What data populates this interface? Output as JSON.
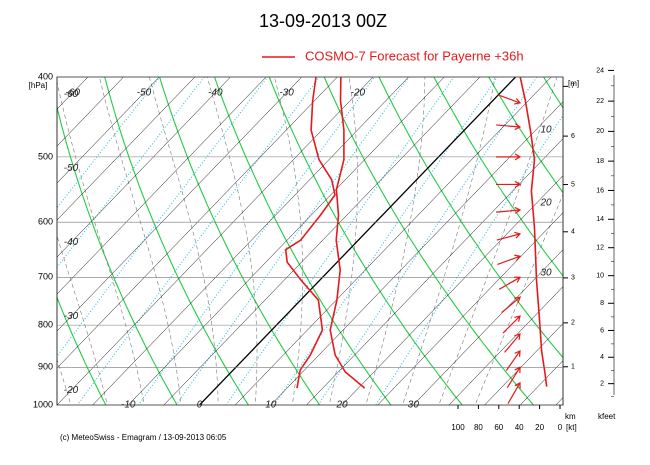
{
  "title": "13-09-2013  00Z",
  "legend": "COSMO-7 Forecast for Payerne   +36h",
  "footer": "(c) MeteoSwiss - Emagram  /  13-09-2013  06:05",
  "chart_data": {
    "type": "emagram",
    "ylabel": "[hPa]",
    "ylim": [
      1000,
      400
    ],
    "log_y": true,
    "yticks": [
      400,
      500,
      600,
      700,
      800,
      900,
      1000
    ],
    "xlim": [
      -20,
      51
    ],
    "isotherm_labels_top": [
      -60,
      -50,
      -40,
      -30,
      -20
    ],
    "isotherm_labels_left": [
      -60,
      -50,
      -40,
      -30,
      -20
    ],
    "isotherm_labels_bottom": [
      -10,
      0,
      10,
      20,
      30
    ],
    "profile_labels": [
      10,
      20,
      30
    ],
    "series": [
      {
        "color": "#e31a1c",
        "pressure": [
          954,
          912,
          870,
          811,
          746,
          686,
          631,
          588,
          548,
          504,
          464,
          427,
          400
        ],
        "values": [
          20.9,
          16.0,
          12.3,
          8.2,
          5.1,
          1.5,
          -3.1,
          -6.2,
          -9.9,
          -12.9,
          -16.9,
          -21.4,
          -24.5
        ]
      },
      {
        "color": "#e31a1c",
        "pressure": [
          954,
          907,
          870,
          811,
          746,
          705,
          671,
          648,
          631,
          588,
          556,
          533,
          504,
          464,
          427,
          400
        ],
        "values": [
          11.4,
          9.4,
          8.8,
          7.1,
          2.5,
          -2.7,
          -7.0,
          -8.9,
          -8.1,
          -8.7,
          -9.4,
          -11.9,
          -16.4,
          -21.5,
          -25.3,
          -28.0
        ]
      },
      {
        "color": "#e31a1c",
        "axis": "wind",
        "pressure": [
          950,
          910,
          860,
          790,
          705,
          610,
          550,
          504,
          464,
          427,
          400
        ],
        "values": [
          13,
          15,
          18,
          20,
          23,
          25,
          28,
          25,
          29,
          34,
          39
        ]
      }
    ],
    "wind_barbs": {
      "color": "#e31a1c",
      "pressure": [
        430,
        460,
        500,
        540,
        580,
        620,
        660,
        700,
        740,
        780,
        820,
        860,
        900,
        940
      ],
      "direction": [
        290,
        275,
        270,
        270,
        265,
        255,
        250,
        240,
        230,
        225,
        220,
        215,
        212,
        210
      ]
    },
    "wind_xlim": [
      100,
      0
    ],
    "wind_xticks": [
      100,
      80,
      60,
      40,
      20,
      0
    ],
    "wind_unit": "[kt]",
    "height_unit": "[m]",
    "km_label": "km",
    "km_ticks": [
      1,
      2,
      3,
      4,
      5,
      6,
      7
    ],
    "kfeet_label": "kfeet",
    "kfeet_ticks": [
      2,
      4,
      6,
      8,
      10,
      12,
      14,
      16,
      18,
      20,
      22,
      24
    ]
  }
}
